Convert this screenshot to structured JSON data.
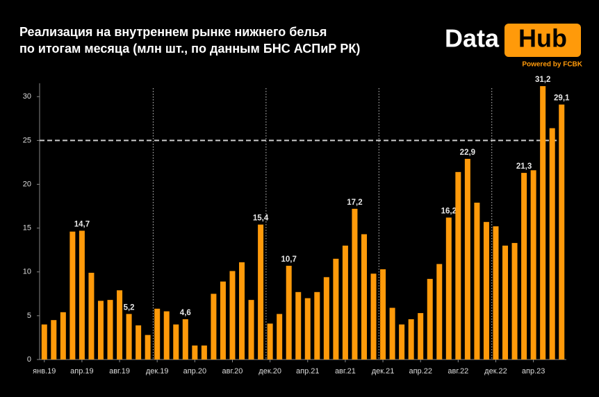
{
  "chart_data": {
    "type": "bar",
    "title": [
      "Реализация на внутреннем рынке нижнего белья",
      "по итогам месяца  (млн шт., по данным БНС АСПиР РК)"
    ],
    "categories": [
      "янв.19",
      null,
      null,
      null,
      "апр.19",
      null,
      null,
      null,
      "авг.19",
      null,
      null,
      null,
      "дек.19",
      null,
      null,
      null,
      "апр.20",
      null,
      null,
      null,
      "авг.20",
      null,
      null,
      null,
      "дек.20",
      null,
      null,
      null,
      "апр.21",
      null,
      null,
      null,
      "авг.21",
      null,
      null,
      null,
      "дек.21",
      null,
      null,
      null,
      "апр.22",
      null,
      null,
      null,
      "авг.22",
      null,
      null,
      null,
      "дек.22",
      null,
      null,
      null,
      "апр.23",
      null,
      null,
      null
    ],
    "values": [
      4.0,
      4.5,
      5.4,
      14.6,
      14.7,
      9.9,
      6.7,
      6.8,
      7.9,
      5.2,
      3.9,
      2.8,
      5.8,
      5.5,
      4.0,
      4.6,
      1.6,
      1.6,
      7.5,
      8.9,
      10.1,
      11.1,
      6.8,
      15.4,
      4.1,
      5.2,
      10.7,
      7.7,
      7.0,
      7.7,
      9.4,
      11.5,
      13.0,
      17.2,
      14.3,
      9.8,
      10.3,
      5.9,
      4.0,
      4.6,
      5.3,
      9.2,
      10.9,
      16.2,
      21.4,
      22.9,
      17.9,
      15.7,
      15.2,
      13.0,
      13.3,
      21.3,
      21.6,
      31.2,
      26.4,
      29.1
    ],
    "value_labels": [
      null,
      null,
      null,
      null,
      "14,7",
      null,
      null,
      null,
      null,
      "5,2",
      null,
      null,
      null,
      null,
      null,
      "4,6",
      null,
      null,
      null,
      null,
      null,
      null,
      null,
      "15,4",
      null,
      null,
      "10,7",
      null,
      null,
      null,
      null,
      null,
      null,
      "17,2",
      null,
      null,
      null,
      null,
      null,
      null,
      null,
      null,
      null,
      "16,2",
      null,
      "22,9",
      null,
      null,
      null,
      null,
      null,
      "21,3",
      null,
      "31,2",
      null,
      "29,1"
    ],
    "color": "#ff9a0a",
    "ylim": [
      0,
      32
    ],
    "yticks": [
      0,
      5,
      10,
      15,
      20,
      25,
      30
    ],
    "reference_line": 25
  },
  "logo": {
    "word1": "Data",
    "word2": "Hub",
    "tagline": "Powered by FCBK"
  }
}
